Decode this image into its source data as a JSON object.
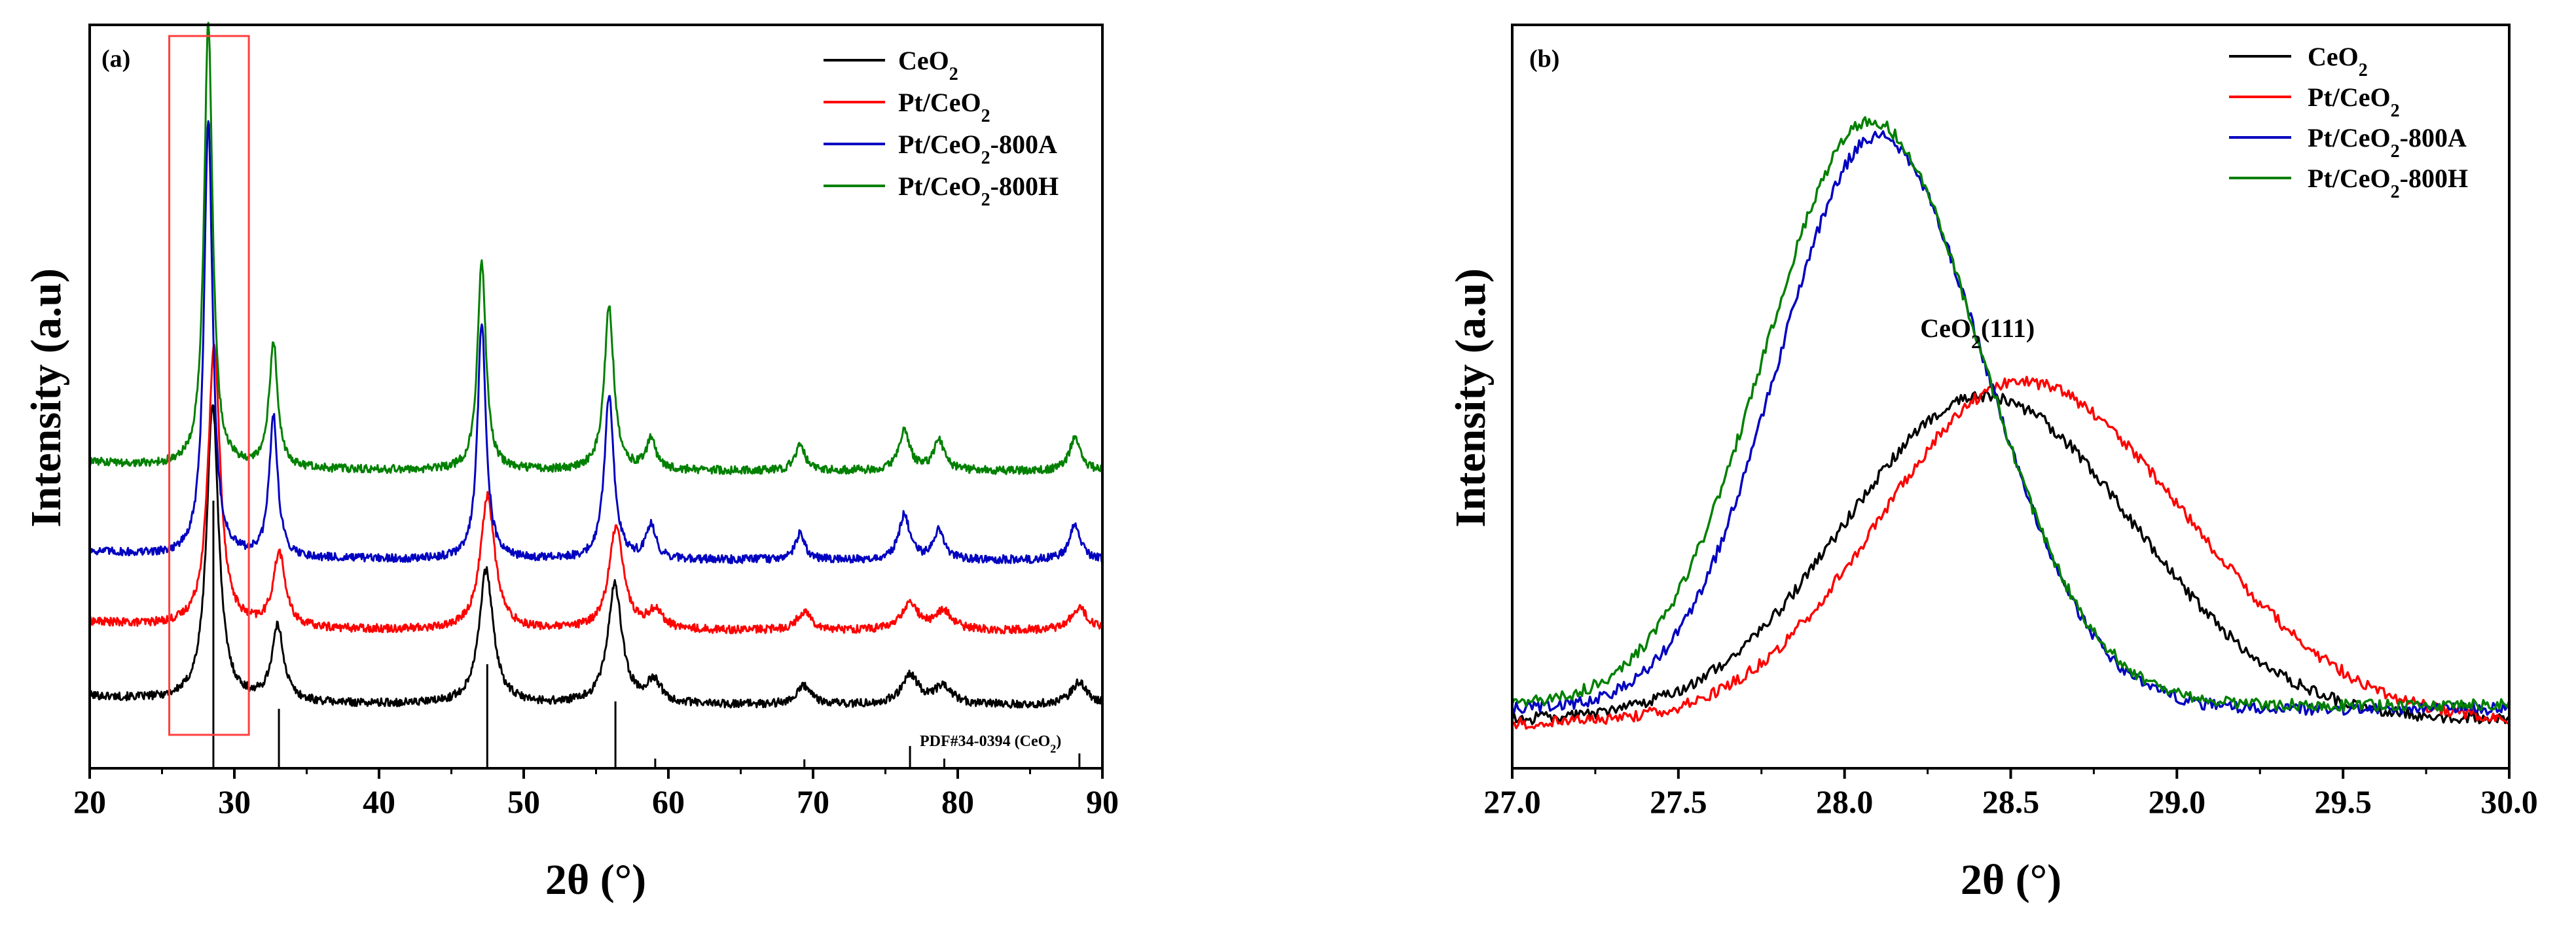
{
  "colors": {
    "CeO2": "#000000",
    "Pt/CeO2": "#ff0000",
    "Pt/CeO2-800A": "#0000c0",
    "Pt/CeO2-800H": "#008000",
    "box": "#ff4040"
  },
  "chart_data": [
    {
      "panel_label": "(a)",
      "type": "line",
      "title": "",
      "xlabel": "2θ (°)",
      "ylabel": "Intensity (a.u)",
      "xlim": [
        20,
        90
      ],
      "ylim": [
        0,
        100
      ],
      "xticks": [
        20,
        30,
        40,
        50,
        60,
        70,
        80,
        90
      ],
      "legend_position": "top-right",
      "series": [
        {
          "name": "CeO2",
          "legend_base": "CeO",
          "legend_sub": "2",
          "legend_suffix": "",
          "color": "#000000",
          "baseline": 8.5
        },
        {
          "name": "Pt/CeO2",
          "legend_base": "Pt/CeO",
          "legend_sub": "2",
          "legend_suffix": "",
          "color": "#ff0000",
          "baseline": 18.5
        },
        {
          "name": "Pt/CeO2-800A",
          "legend_base": "Pt/CeO",
          "legend_sub": "2",
          "legend_suffix": "-800A",
          "color": "#0000c0",
          "baseline": 28.0
        },
        {
          "name": "Pt/CeO2-800H",
          "legend_base": "Pt/CeO",
          "legend_sub": "2",
          "legend_suffix": "-800H",
          "color": "#008000",
          "baseline": 40.0
        }
      ],
      "peaks": [
        {
          "name": "CeO2",
          "positions": [
            28.5,
            33.0,
            47.4,
            56.3,
            59.0,
            69.4,
            76.7,
            79.0,
            88.4
          ],
          "heights": [
            40,
            10,
            18,
            16,
            3,
            2.5,
            4,
            2.5,
            3
          ],
          "widths": [
            0.5,
            0.5,
            0.6,
            0.6,
            0.6,
            0.6,
            0.7,
            0.7,
            0.7
          ]
        },
        {
          "name": "Pt/CeO2",
          "positions": [
            28.6,
            33.1,
            47.5,
            56.4,
            59.1,
            69.4,
            76.7,
            79.0,
            88.4
          ],
          "heights": [
            38,
            10,
            18,
            14,
            2.5,
            2.5,
            3.5,
            2.5,
            3
          ],
          "widths": [
            0.5,
            0.5,
            0.6,
            0.6,
            0.6,
            0.6,
            0.7,
            0.7,
            0.7
          ]
        },
        {
          "name": "Pt/CeO2-800A",
          "positions": [
            28.2,
            32.7,
            47.1,
            55.9,
            58.8,
            69.1,
            76.3,
            78.7,
            88.1
          ],
          "heights": [
            59,
            19,
            32,
            22,
            4.5,
            3.5,
            6,
            4,
            5
          ],
          "widths": [
            0.35,
            0.35,
            0.35,
            0.4,
            0.4,
            0.4,
            0.45,
            0.45,
            0.45
          ]
        },
        {
          "name": "Pt/CeO2-800H",
          "positions": [
            28.2,
            32.7,
            47.1,
            55.9,
            58.8,
            69.1,
            76.3,
            78.7,
            88.1
          ],
          "heights": [
            60,
            17,
            28,
            22,
            4,
            3.5,
            5.5,
            4,
            4.5
          ],
          "widths": [
            0.35,
            0.35,
            0.35,
            0.4,
            0.4,
            0.4,
            0.45,
            0.45,
            0.45
          ]
        }
      ],
      "reference": {
        "label": "PDF#34-0394 (CeO2)",
        "label_base": "PDF#34-0394 (CeO",
        "label_sub": "2",
        "label_suffix": ")",
        "positions": [
          28.55,
          33.08,
          47.48,
          56.34,
          59.09,
          69.4,
          76.7,
          79.07,
          88.41
        ],
        "heights": [
          36,
          8,
          14,
          9,
          1.3,
          1.2,
          3,
          1.3,
          2
        ]
      },
      "highlight_box": {
        "x_range": [
          25.5,
          31.0
        ],
        "y_range": [
          4.5,
          98.5
        ]
      }
    },
    {
      "panel_label": "(b)",
      "type": "line",
      "title": "",
      "xlabel": "2θ (°)",
      "ylabel": "Intensity (a.u)",
      "xlim": [
        27.0,
        30.0
      ],
      "ylim": [
        0,
        100
      ],
      "xticks": [
        "27.0",
        "27.5",
        "28.0",
        "28.5",
        "29.0",
        "29.5",
        "30.0"
      ],
      "legend_position": "top-right",
      "annotation": {
        "base": "CeO",
        "sub": "2",
        "suffix": "(111)",
        "x": 28.4,
        "y": 58
      },
      "series": [
        {
          "name": "CeO2",
          "legend_base": "CeO",
          "legend_sub": "2",
          "legend_suffix": "",
          "color": "#000000",
          "center": 28.42,
          "peak": 50,
          "sigma_left": 0.42,
          "sigma_right": 0.45,
          "floor": 6.5
        },
        {
          "name": "Pt/CeO2",
          "legend_base": "Pt/CeO",
          "legend_sub": "2",
          "legend_suffix": "",
          "color": "#ff0000",
          "center": 28.53,
          "peak": 52,
          "sigma_left": 0.42,
          "sigma_right": 0.5,
          "floor": 6.0
        },
        {
          "name": "Pt/CeO2-800A",
          "legend_base": "Pt/CeO",
          "legend_sub": "2",
          "legend_suffix": "-800A",
          "color": "#0000c0",
          "center": 28.1,
          "peak": 85,
          "sigma_left": 0.3,
          "sigma_right": 0.32,
          "floor": 8.0
        },
        {
          "name": "Pt/CeO2-800H",
          "legend_base": "Pt/CeO",
          "legend_sub": "2",
          "legend_suffix": "-800H",
          "color": "#008000",
          "center": 28.08,
          "peak": 87,
          "sigma_left": 0.32,
          "sigma_right": 0.33,
          "floor": 8.5
        }
      ]
    }
  ]
}
